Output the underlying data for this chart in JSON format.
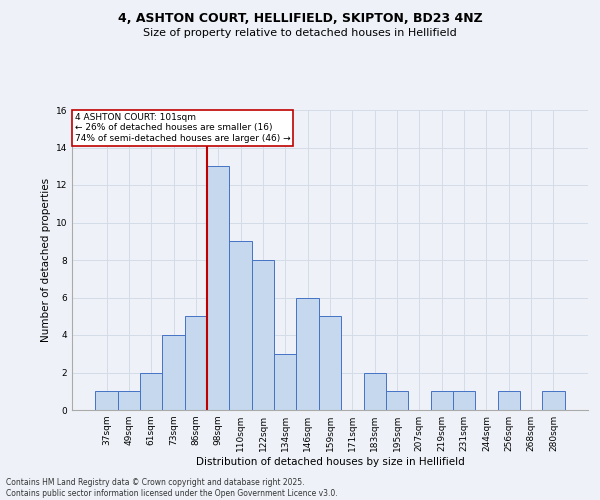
{
  "title_line1": "4, ASHTON COURT, HELLIFIELD, SKIPTON, BD23 4NZ",
  "title_line2": "Size of property relative to detached houses in Hellifield",
  "xlabel": "Distribution of detached houses by size in Hellifield",
  "ylabel": "Number of detached properties",
  "footer_line1": "Contains HM Land Registry data © Crown copyright and database right 2025.",
  "footer_line2": "Contains public sector information licensed under the Open Government Licence v3.0.",
  "bin_labels": [
    "37sqm",
    "49sqm",
    "61sqm",
    "73sqm",
    "86sqm",
    "98sqm",
    "110sqm",
    "122sqm",
    "134sqm",
    "146sqm",
    "159sqm",
    "171sqm",
    "183sqm",
    "195sqm",
    "207sqm",
    "219sqm",
    "231sqm",
    "244sqm",
    "256sqm",
    "268sqm",
    "280sqm"
  ],
  "bar_values": [
    1,
    1,
    2,
    4,
    5,
    13,
    9,
    8,
    3,
    6,
    5,
    0,
    2,
    1,
    0,
    1,
    1,
    0,
    1,
    0,
    1
  ],
  "bar_color": "#c5d8ed",
  "bar_edge_color": "#4472c4",
  "annotation_box_text": "4 ASHTON COURT: 101sqm\n← 26% of detached houses are smaller (16)\n74% of semi-detached houses are larger (46) →",
  "annotation_box_color": "#ffffff",
  "annotation_box_edge_color": "#c00000",
  "red_line_bar_index": 5,
  "grid_color": "#d4dce8",
  "bg_color": "#eef2f8",
  "ylim": [
    0,
    16
  ],
  "yticks": [
    0,
    2,
    4,
    6,
    8,
    10,
    12,
    14,
    16
  ]
}
